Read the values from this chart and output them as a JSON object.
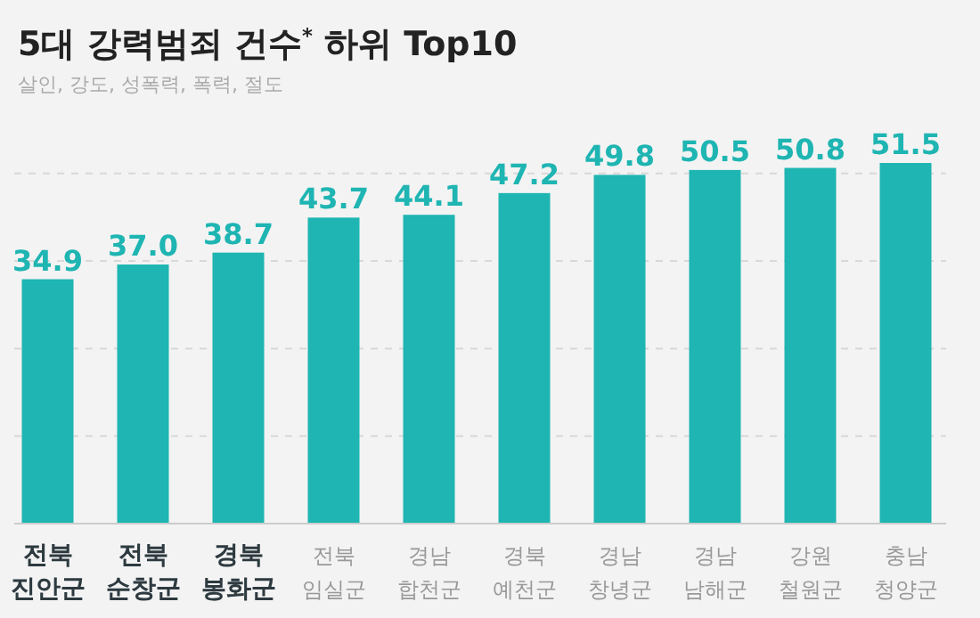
{
  "chart_data": {
    "type": "bar",
    "title": "5대 강력범죄 건수$^{*}$ 하위 Top10",
    "subtitle": "살인, 강도, 성폭력, 폭력, 절도",
    "categories": [
      "**전북 진안군**",
      "**전북 순창군**",
      "**경북 봉화군**",
      "전북 임실군",
      "경남 합천군",
      "경북 예천군",
      "경남 창녕군",
      "경남 남해군",
      "강원 철원군",
      "충남 청양군"
    ],
    "values": [
      34.9,
      37.0,
      38.7,
      43.7,
      44.1,
      47.2,
      49.8,
      50.5,
      50.8,
      51.5
    ],
    "value_labels": [
      "34.9",
      "37.0",
      "38.7",
      "43.7",
      "44.1",
      "47.2",
      "49.8",
      "50.5",
      "50.8",
      "51.5"
    ],
    "color": "#1eb5b2",
    "grid": "y",
    "tick_labels": "x",
    "yticks": [
      {
        "value": 12.5,
        "label": null
      },
      {
        "value": 25,
        "label": null
      },
      {
        "value": 37.5,
        "label": null
      },
      {
        "value": 50,
        "label": null
      }
    ]
  }
}
